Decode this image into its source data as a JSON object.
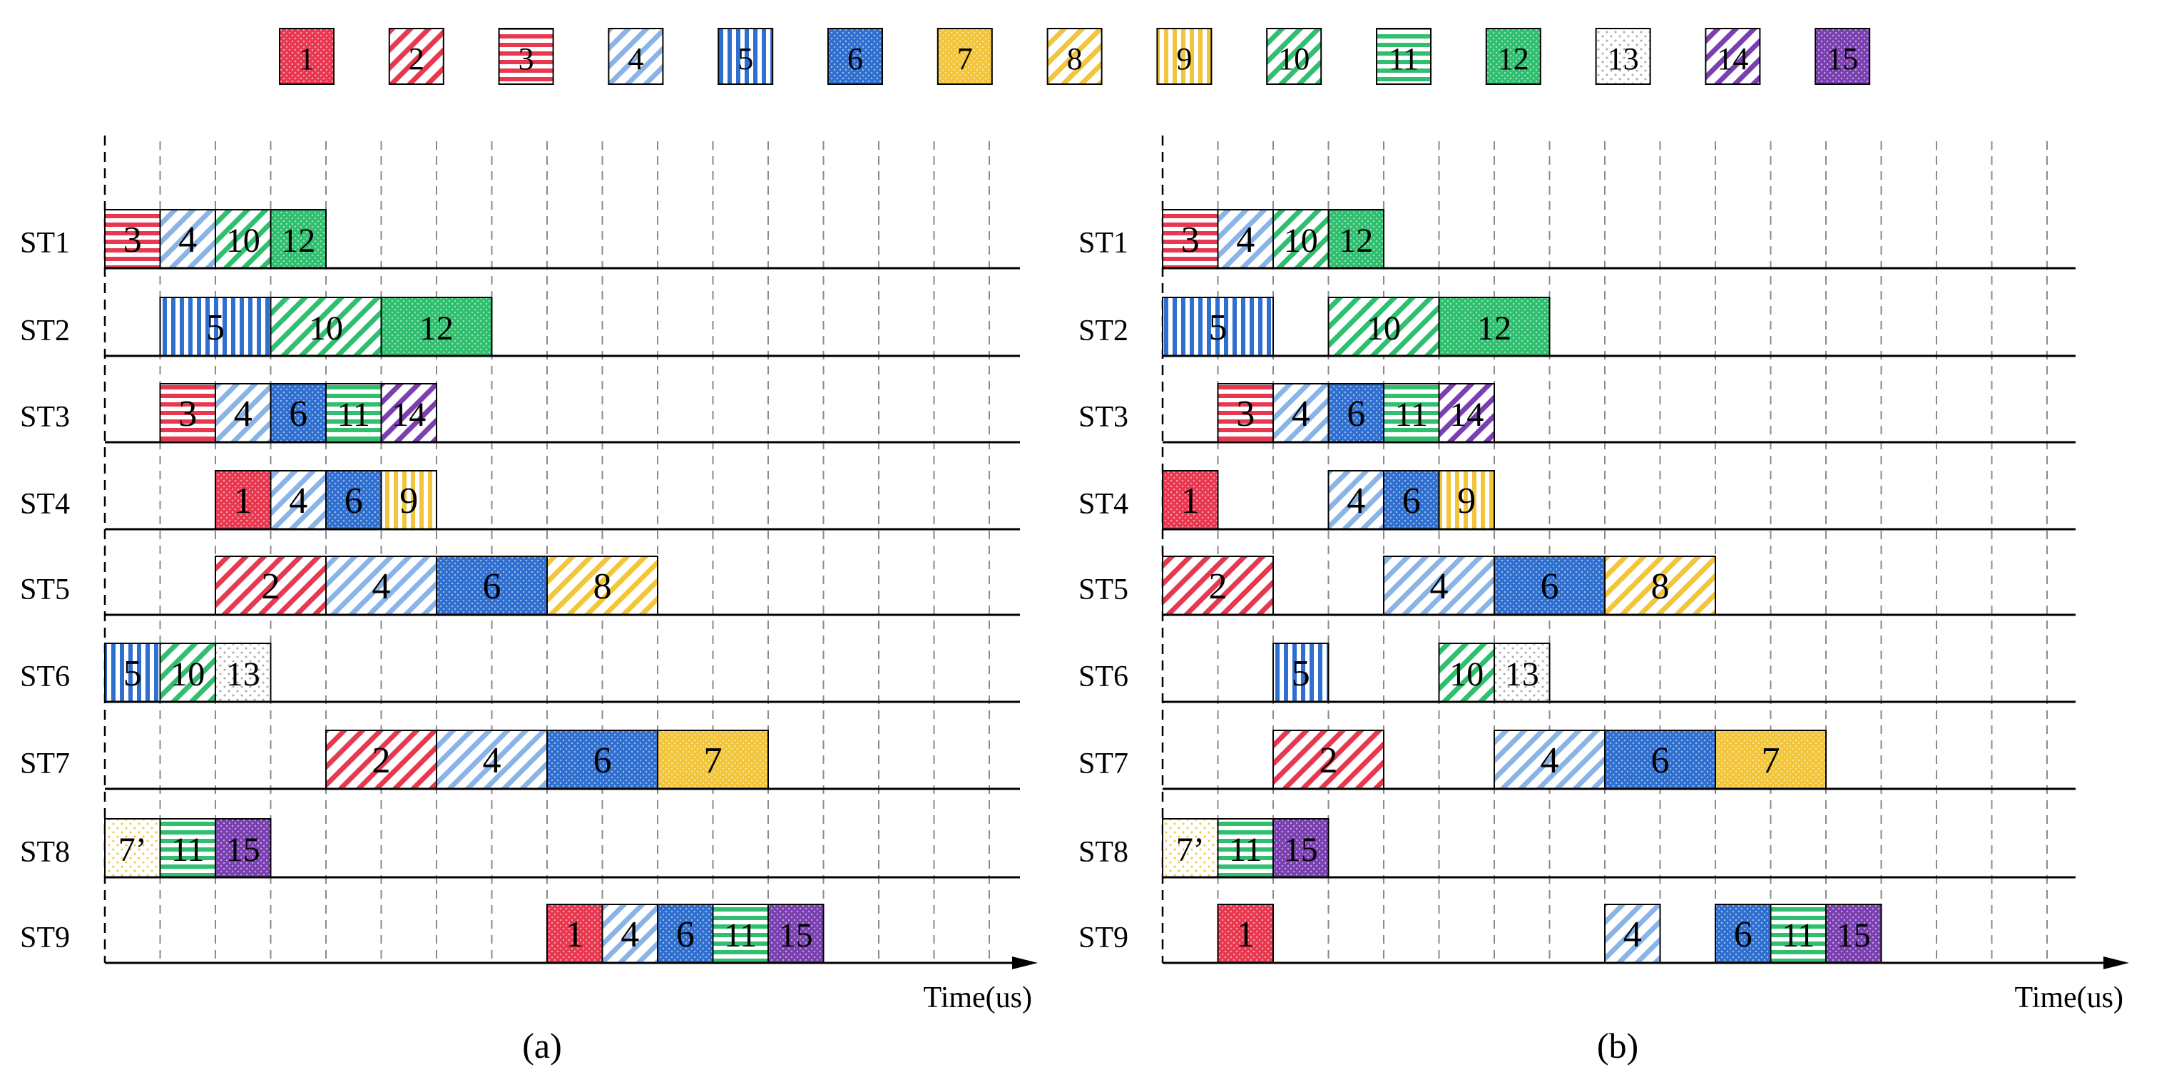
{
  "legend": [
    {
      "id": "1",
      "label": "1",
      "color": "#e8384f",
      "pattern": "dots"
    },
    {
      "id": "2",
      "label": "2",
      "color": "#e8384f",
      "pattern": "diag"
    },
    {
      "id": "3",
      "label": "3",
      "color": "#e8384f",
      "pattern": "hstripe"
    },
    {
      "id": "4",
      "label": "4",
      "color": "#8ab4e8",
      "pattern": "diag"
    },
    {
      "id": "5",
      "label": "5",
      "color": "#2f6fd0",
      "pattern": "vstripe"
    },
    {
      "id": "6",
      "label": "6",
      "color": "#2f6fd0",
      "pattern": "dots"
    },
    {
      "id": "7",
      "label": "7",
      "color": "#f2c53a",
      "pattern": "dots"
    },
    {
      "id": "8",
      "label": "8",
      "color": "#f2c53a",
      "pattern": "diag"
    },
    {
      "id": "9",
      "label": "9",
      "color": "#f2c53a",
      "pattern": "vstripe"
    },
    {
      "id": "10",
      "label": "10",
      "color": "#2fbf6e",
      "pattern": "diag"
    },
    {
      "id": "11",
      "label": "11",
      "color": "#2fbf6e",
      "pattern": "hstripe"
    },
    {
      "id": "12",
      "label": "12",
      "color": "#2fbf6e",
      "pattern": "dots"
    },
    {
      "id": "13",
      "label": "13",
      "color": "#a9a9a9",
      "pattern": "sparse"
    },
    {
      "id": "14",
      "label": "14",
      "color": "#7a3fb0",
      "pattern": "diag"
    },
    {
      "id": "15",
      "label": "15",
      "color": "#7a3fb0",
      "pattern": "dots"
    },
    {
      "id": "7p",
      "label": "7’",
      "color": "#f2c53a",
      "pattern": "sparse"
    }
  ],
  "panels": [
    {
      "id": "a",
      "caption": "(a)",
      "time_label": "Time(us)",
      "rows": [
        {
          "label": "ST1",
          "tasks": [
            {
              "t": "3",
              "s": 0,
              "e": 1
            },
            {
              "t": "4",
              "s": 1,
              "e": 2
            },
            {
              "t": "10",
              "s": 2,
              "e": 3
            },
            {
              "t": "12",
              "s": 3,
              "e": 4
            }
          ]
        },
        {
          "label": "ST2",
          "tasks": [
            {
              "t": "5",
              "s": 1,
              "e": 3
            },
            {
              "t": "10",
              "s": 3,
              "e": 5
            },
            {
              "t": "12",
              "s": 5,
              "e": 7
            }
          ]
        },
        {
          "label": "ST3",
          "tasks": [
            {
              "t": "3",
              "s": 1,
              "e": 2
            },
            {
              "t": "4",
              "s": 2,
              "e": 3
            },
            {
              "t": "6",
              "s": 3,
              "e": 4
            },
            {
              "t": "11",
              "s": 4,
              "e": 5
            },
            {
              "t": "14",
              "s": 5,
              "e": 6
            }
          ]
        },
        {
          "label": "ST4",
          "tasks": [
            {
              "t": "1",
              "s": 2,
              "e": 3
            },
            {
              "t": "4",
              "s": 3,
              "e": 4
            },
            {
              "t": "6",
              "s": 4,
              "e": 5
            },
            {
              "t": "9",
              "s": 5,
              "e": 6
            }
          ]
        },
        {
          "label": "ST5",
          "tasks": [
            {
              "t": "2",
              "s": 2,
              "e": 4
            },
            {
              "t": "4",
              "s": 4,
              "e": 6
            },
            {
              "t": "6",
              "s": 6,
              "e": 8
            },
            {
              "t": "8",
              "s": 8,
              "e": 10
            }
          ]
        },
        {
          "label": "ST6",
          "tasks": [
            {
              "t": "5",
              "s": 0,
              "e": 1
            },
            {
              "t": "10",
              "s": 1,
              "e": 2
            },
            {
              "t": "13",
              "s": 2,
              "e": 3
            }
          ]
        },
        {
          "label": "ST7",
          "tasks": [
            {
              "t": "2",
              "s": 4,
              "e": 6
            },
            {
              "t": "4",
              "s": 6,
              "e": 8
            },
            {
              "t": "6",
              "s": 8,
              "e": 10
            },
            {
              "t": "7",
              "s": 10,
              "e": 12
            }
          ]
        },
        {
          "label": "ST8",
          "tasks": [
            {
              "t": "7p",
              "s": 0,
              "e": 1
            },
            {
              "t": "11",
              "s": 1,
              "e": 2
            },
            {
              "t": "15",
              "s": 2,
              "e": 3
            }
          ]
        },
        {
          "label": "ST9",
          "tasks": [
            {
              "t": "1",
              "s": 8,
              "e": 9
            },
            {
              "t": "4",
              "s": 9,
              "e": 10
            },
            {
              "t": "6",
              "s": 10,
              "e": 11
            },
            {
              "t": "11",
              "s": 11,
              "e": 12
            },
            {
              "t": "15",
              "s": 12,
              "e": 13
            }
          ]
        }
      ]
    },
    {
      "id": "b",
      "caption": "(b)",
      "time_label": "Time(us)",
      "rows": [
        {
          "label": "ST1",
          "tasks": [
            {
              "t": "3",
              "s": 0,
              "e": 1
            },
            {
              "t": "4",
              "s": 1,
              "e": 2
            },
            {
              "t": "10",
              "s": 2,
              "e": 3
            },
            {
              "t": "12",
              "s": 3,
              "e": 4
            }
          ]
        },
        {
          "label": "ST2",
          "tasks": [
            {
              "t": "5",
              "s": 0,
              "e": 2
            },
            {
              "t": "10",
              "s": 3,
              "e": 5
            },
            {
              "t": "12",
              "s": 5,
              "e": 7
            }
          ]
        },
        {
          "label": "ST3",
          "tasks": [
            {
              "t": "3",
              "s": 1,
              "e": 2
            },
            {
              "t": "4",
              "s": 2,
              "e": 3
            },
            {
              "t": "6",
              "s": 3,
              "e": 4
            },
            {
              "t": "11",
              "s": 4,
              "e": 5
            },
            {
              "t": "14",
              "s": 5,
              "e": 6
            }
          ]
        },
        {
          "label": "ST4",
          "tasks": [
            {
              "t": "1",
              "s": 0,
              "e": 1
            },
            {
              "t": "4",
              "s": 3,
              "e": 4
            },
            {
              "t": "6",
              "s": 4,
              "e": 5
            },
            {
              "t": "9",
              "s": 5,
              "e": 6
            }
          ]
        },
        {
          "label": "ST5",
          "tasks": [
            {
              "t": "2",
              "s": 0,
              "e": 2
            },
            {
              "t": "4",
              "s": 4,
              "e": 6
            },
            {
              "t": "6",
              "s": 6,
              "e": 8
            },
            {
              "t": "8",
              "s": 8,
              "e": 10
            }
          ]
        },
        {
          "label": "ST6",
          "tasks": [
            {
              "t": "5",
              "s": 2,
              "e": 3
            },
            {
              "t": "10",
              "s": 5,
              "e": 6
            },
            {
              "t": "13",
              "s": 6,
              "e": 7
            }
          ]
        },
        {
          "label": "ST7",
          "tasks": [
            {
              "t": "2",
              "s": 2,
              "e": 4
            },
            {
              "t": "4",
              "s": 6,
              "e": 8
            },
            {
              "t": "6",
              "s": 8,
              "e": 10
            },
            {
              "t": "7",
              "s": 10,
              "e": 12
            }
          ]
        },
        {
          "label": "ST8",
          "tasks": [
            {
              "t": "7p",
              "s": 0,
              "e": 1
            },
            {
              "t": "11",
              "s": 1,
              "e": 2
            },
            {
              "t": "15",
              "s": 2,
              "e": 3
            }
          ]
        },
        {
          "label": "ST9",
          "tasks": [
            {
              "t": "1",
              "s": 1,
              "e": 2
            },
            {
              "t": "4",
              "s": 8,
              "e": 9
            },
            {
              "t": "6",
              "s": 10,
              "e": 11
            },
            {
              "t": "11",
              "s": 11,
              "e": 12
            },
            {
              "t": "15",
              "s": 12,
              "e": 13
            }
          ]
        }
      ]
    }
  ]
}
